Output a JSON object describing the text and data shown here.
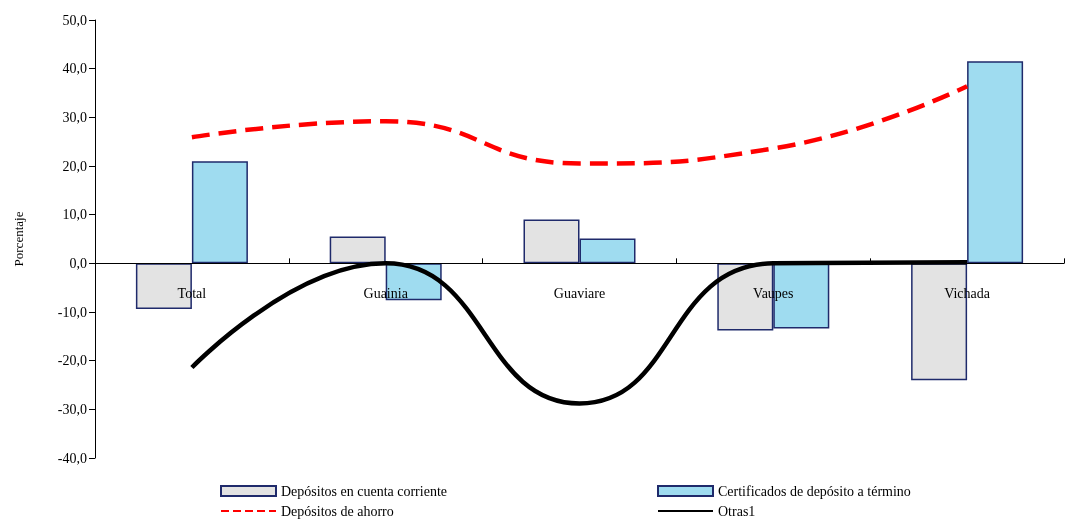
{
  "chart_data": {
    "type": "bar",
    "ylabel": "Porcentaje",
    "categories": [
      "Total",
      "Guainia",
      "Guaviare",
      "Vaupes",
      "Vichada"
    ],
    "series": [
      {
        "name": "Depósitos en cuenta corriente",
        "color": "#e3e3e3",
        "values": [
          -9.4,
          5.5,
          9.0,
          -13.8,
          -24.0
        ]
      },
      {
        "name": "Certificados de depósito a término",
        "color": "#9fdcf0",
        "values": [
          21.0,
          -7.6,
          5.1,
          -13.4,
          41.5
        ]
      },
      {
        "name": "Depósitos de ahorro",
        "type": "line",
        "color": "#ff0000",
        "line_style": "dashed",
        "values": [
          25.9,
          29.2,
          20.5,
          23.6,
          36.4
        ]
      },
      {
        "name": "Otras1",
        "type": "line",
        "color": "#000000",
        "line_style": "solid",
        "values": [
          -21.4,
          0.0,
          -28.8,
          0.0,
          0.2
        ]
      }
    ],
    "ylim": [
      -40,
      50
    ],
    "yticks": [
      {
        "value": -40,
        "label": "-40,0"
      },
      {
        "value": -30,
        "label": "-30,0"
      },
      {
        "value": -20,
        "label": "-20,0"
      },
      {
        "value": -10,
        "label": "-10,0"
      },
      {
        "value": 0,
        "label": "0,0"
      },
      {
        "value": 10,
        "label": "10,0"
      },
      {
        "value": 20,
        "label": "20,0"
      },
      {
        "value": 30,
        "label": "30,0"
      },
      {
        "value": 40,
        "label": "40,0"
      },
      {
        "value": 50,
        "label": "50,0"
      }
    ],
    "legend": "bottom",
    "marker": "none"
  }
}
